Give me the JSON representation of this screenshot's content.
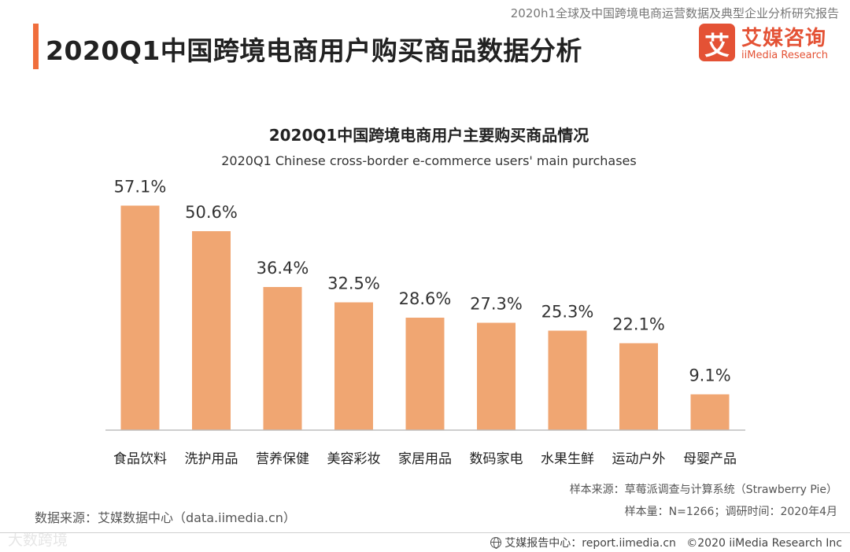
{
  "header": {
    "report_title": "2020h1全球及中国跨境电商运营数据及典型企业分析研究报告",
    "page_title": "2020Q1中国跨境电商用户购买商品数据分析",
    "logo": {
      "mark_char": "艾",
      "name_cn": "艾媒咨询",
      "name_en": "iiMedia Research"
    }
  },
  "chart_data": {
    "type": "bar",
    "title": "2020Q1中国跨境电商用户主要购买商品情况",
    "subtitle": "2020Q1 Chinese cross-border e-commerce users' main purchases",
    "categories": [
      "食品饮料",
      "洗护用品",
      "营养保健",
      "美容彩妆",
      "家居用品",
      "数码家电",
      "水果生鲜",
      "运动户外",
      "母婴产品"
    ],
    "values": [
      57.1,
      50.6,
      36.4,
      32.5,
      28.6,
      27.3,
      25.3,
      22.1,
      9.1
    ],
    "value_labels": [
      "57.1%",
      "50.6%",
      "36.4%",
      "32.5%",
      "28.6%",
      "27.3%",
      "25.3%",
      "22.1%",
      "9.1%"
    ],
    "xlabel": "",
    "ylabel": "",
    "ylim": [
      0,
      60
    ],
    "unit": "%",
    "bar_color": "#f0a672",
    "grid": false,
    "legend": "none"
  },
  "notes": {
    "sample_source": "样本来源：草莓派调查与计算系统（Strawberry Pie）",
    "sample_size": "样本量：N=1266；调研时间：2020年4月",
    "data_source": "数据来源：艾媒数据中心（data.iimedia.cn）"
  },
  "footer": {
    "watermark": "大数跨境",
    "report_center": "艾媒报告中心：report.iimedia.cn",
    "copyright": "©2020  iiMedia Research  Inc"
  },
  "colors": {
    "accent": "#f06e3c",
    "brand": "#e45235",
    "bar": "#f0a672"
  }
}
